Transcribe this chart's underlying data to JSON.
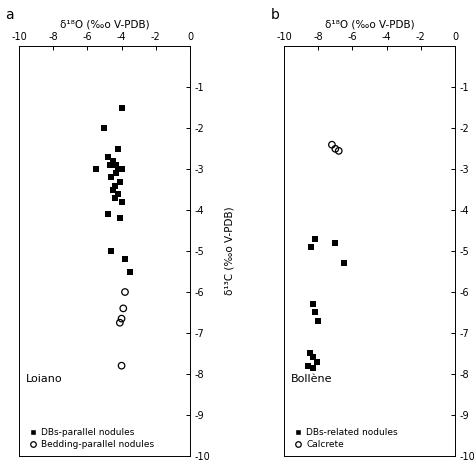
{
  "panel_a": {
    "title": "Loiano",
    "xlabel": "δ¹⁸O (‰o V-PDB)",
    "ylabel": "δ¹³C (‰o V-PDB)",
    "xlim": [
      -10,
      0
    ],
    "ylim": [
      -10,
      0
    ],
    "xticks": [
      -10,
      -8,
      -6,
      -4,
      -2,
      0
    ],
    "yticks": [
      0,
      -1,
      -2,
      -3,
      -4,
      -5,
      -6,
      -7,
      -8,
      -9,
      -10
    ],
    "xtick_labels": [
      "-10",
      "-8",
      "-6",
      "-4",
      "-2",
      "0"
    ],
    "ytick_labels": [
      "",
      "-1",
      "-2",
      "-3",
      "-4",
      "-5",
      "-6",
      "-7",
      "-8",
      "-9",
      "-10"
    ],
    "squares": [
      [
        -4.0,
        -1.5
      ],
      [
        -5.0,
        -2.0
      ],
      [
        -4.2,
        -2.5
      ],
      [
        -4.8,
        -2.7
      ],
      [
        -4.5,
        -2.8
      ],
      [
        -4.3,
        -2.9
      ],
      [
        -4.7,
        -2.9
      ],
      [
        -5.5,
        -3.0
      ],
      [
        -4.2,
        -3.0
      ],
      [
        -4.0,
        -3.0
      ],
      [
        -4.3,
        -3.1
      ],
      [
        -4.6,
        -3.2
      ],
      [
        -4.1,
        -3.3
      ],
      [
        -4.4,
        -3.4
      ],
      [
        -4.5,
        -3.5
      ],
      [
        -4.2,
        -3.6
      ],
      [
        -4.4,
        -3.7
      ],
      [
        -4.0,
        -3.8
      ],
      [
        -4.8,
        -4.1
      ],
      [
        -4.1,
        -4.2
      ],
      [
        -4.6,
        -5.0
      ],
      [
        -3.8,
        -5.2
      ],
      [
        -3.5,
        -5.5
      ]
    ],
    "circles": [
      [
        -3.8,
        -6.0
      ],
      [
        -3.9,
        -6.4
      ],
      [
        -4.0,
        -6.65
      ],
      [
        -4.1,
        -6.75
      ],
      [
        -4.0,
        -7.8
      ]
    ],
    "label_squares": "DBs-parallel nodules",
    "label_circles": "Bedding-parallel nodules"
  },
  "panel_b": {
    "title": "Bollène",
    "xlabel": "δ¹⁸O (‰o V-PDB)",
    "ylabel": "δ¹³C (‰o V-PDB)",
    "xlim": [
      -10,
      0
    ],
    "ylim": [
      -10,
      0
    ],
    "xticks": [
      -10,
      -8,
      -6,
      -4,
      -2,
      0
    ],
    "yticks": [
      0,
      -1,
      -2,
      -3,
      -4,
      -5,
      -6,
      -7,
      -8,
      -9,
      -10
    ],
    "xtick_labels": [
      "-10",
      "-8",
      "-6",
      "-4",
      "-2",
      "0"
    ],
    "ytick_labels": [
      "",
      "-1",
      "-2",
      "-3",
      "-4",
      "-5",
      "-6",
      "-7",
      "-8",
      "-9",
      "-10"
    ],
    "squares": [
      [
        -8.2,
        -4.7
      ],
      [
        -8.4,
        -4.9
      ],
      [
        -7.0,
        -4.8
      ],
      [
        -6.5,
        -5.3
      ],
      [
        -8.3,
        -6.3
      ],
      [
        -8.2,
        -6.5
      ],
      [
        -8.0,
        -6.7
      ],
      [
        -8.5,
        -7.5
      ],
      [
        -8.3,
        -7.6
      ],
      [
        -8.1,
        -7.7
      ],
      [
        -8.6,
        -7.8
      ],
      [
        -8.3,
        -7.85
      ]
    ],
    "circles": [
      [
        -7.2,
        -2.4
      ],
      [
        -7.0,
        -2.5
      ],
      [
        -6.8,
        -2.55
      ]
    ],
    "label_squares": "DBs-related nodules",
    "label_circles": "Calcrete"
  },
  "panel_label_a": "a",
  "panel_label_b": "b",
  "bg_color": "#ffffff",
  "marker_color": "black",
  "sq_size": 18,
  "ci_size": 22,
  "ci_lw": 0.9,
  "tick_fontsize": 7,
  "label_fontsize": 7.5,
  "title_fontsize": 8,
  "legend_fontsize": 6.5
}
